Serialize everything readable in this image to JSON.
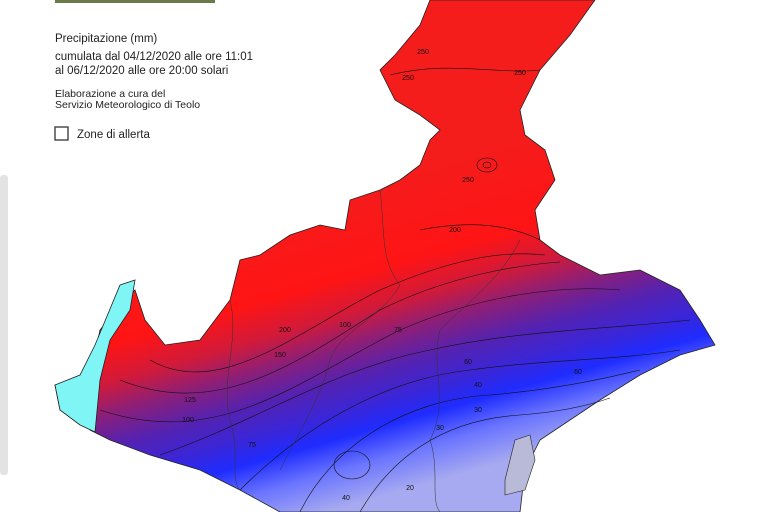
{
  "legend": {
    "title": "Precipitazione (mm)",
    "period_from": "cumulata dal 04/12/2020 alle ore 11:01",
    "period_to": "al 06/12/2020 alle ore 20:00 solari",
    "credit_1": "Elaborazione a cura del",
    "credit_2": "Servizio Meteorologico di Teolo",
    "layer_toggle": "Zone di allerta"
  },
  "contour_labels": [
    250,
    250,
    250,
    250,
    200,
    200,
    150,
    125,
    100,
    100,
    75,
    75,
    60,
    60,
    40,
    40,
    30,
    30,
    20
  ]
}
